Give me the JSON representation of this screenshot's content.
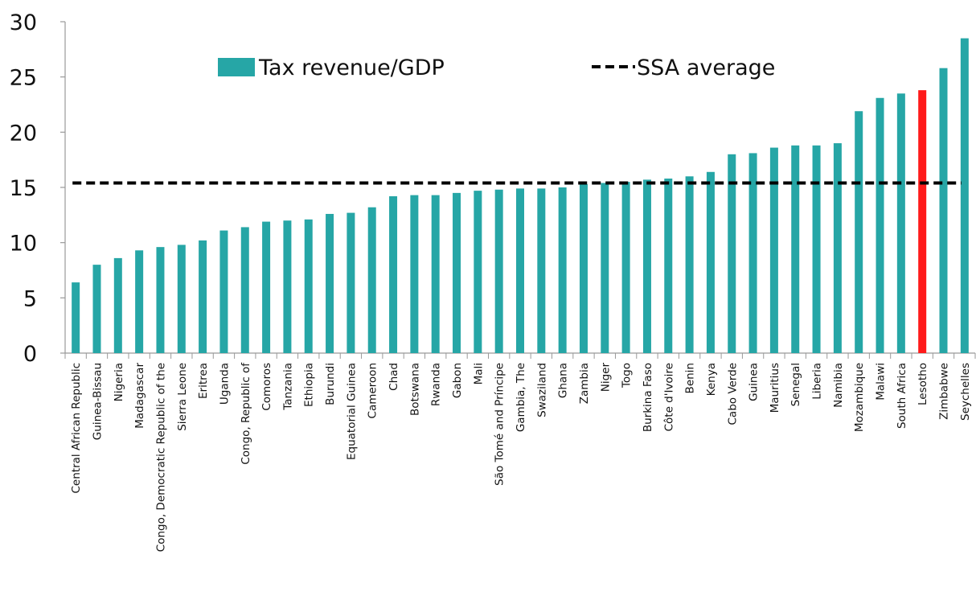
{
  "chart_data": {
    "type": "bar",
    "title": "",
    "xlabel": "",
    "ylabel": "",
    "ylim": [
      0,
      30
    ],
    "yticks": [
      "0",
      "5",
      "10",
      "15",
      "20",
      "25",
      "30"
    ],
    "grid": false,
    "legend_placement": "top",
    "categories": [
      "Central African Republic",
      "Guinea-Bissau",
      "Nigeria",
      "Madagascar",
      "Congo, Democratic Republic of the",
      "Sierra Leone",
      "Eritrea",
      "Uganda",
      "Congo, Republic of",
      "Comoros",
      "Tanzania",
      "Ethiopia",
      "Burundi",
      "Equatorial Guinea",
      "Cameroon",
      "Chad",
      "Botswana",
      "Rwanda",
      "Gabon",
      "Mali",
      "São Tomé and Príncipe",
      "Gambia, The",
      "Swaziland",
      "Ghana",
      "Zambia",
      "Niger",
      "Togo",
      "Burkina Faso",
      "Côte d'Ivoire",
      "Benin",
      "Kenya",
      "Cabo Verde",
      "Guinea",
      "Mauritius",
      "Senegal",
      "Liberia",
      "Namibia",
      "Mozambique",
      "Malawi",
      "South Africa",
      "Lesotho",
      "Zimbabwe",
      "Seychelles"
    ],
    "series": [
      {
        "name": "Tax revenue/GDP",
        "type": "bar",
        "color": "#26A6A6",
        "highlight": {
          "category": "Lesotho",
          "color": "#FF1A1A"
        },
        "values": [
          6.4,
          8.0,
          8.6,
          9.3,
          9.6,
          9.8,
          10.2,
          11.1,
          11.4,
          11.9,
          12.0,
          12.1,
          12.6,
          12.7,
          13.2,
          14.2,
          14.3,
          14.3,
          14.5,
          14.7,
          14.8,
          14.9,
          14.9,
          15.0,
          15.3,
          15.4,
          15.5,
          15.7,
          15.8,
          16.0,
          16.4,
          18.0,
          18.1,
          18.6,
          18.8,
          18.8,
          19.0,
          21.9,
          23.1,
          23.5,
          23.8,
          25.8,
          28.5
        ]
      },
      {
        "name": "SSA average",
        "type": "line",
        "style": "dashed",
        "color": "#000000",
        "value": 15.4
      }
    ]
  }
}
